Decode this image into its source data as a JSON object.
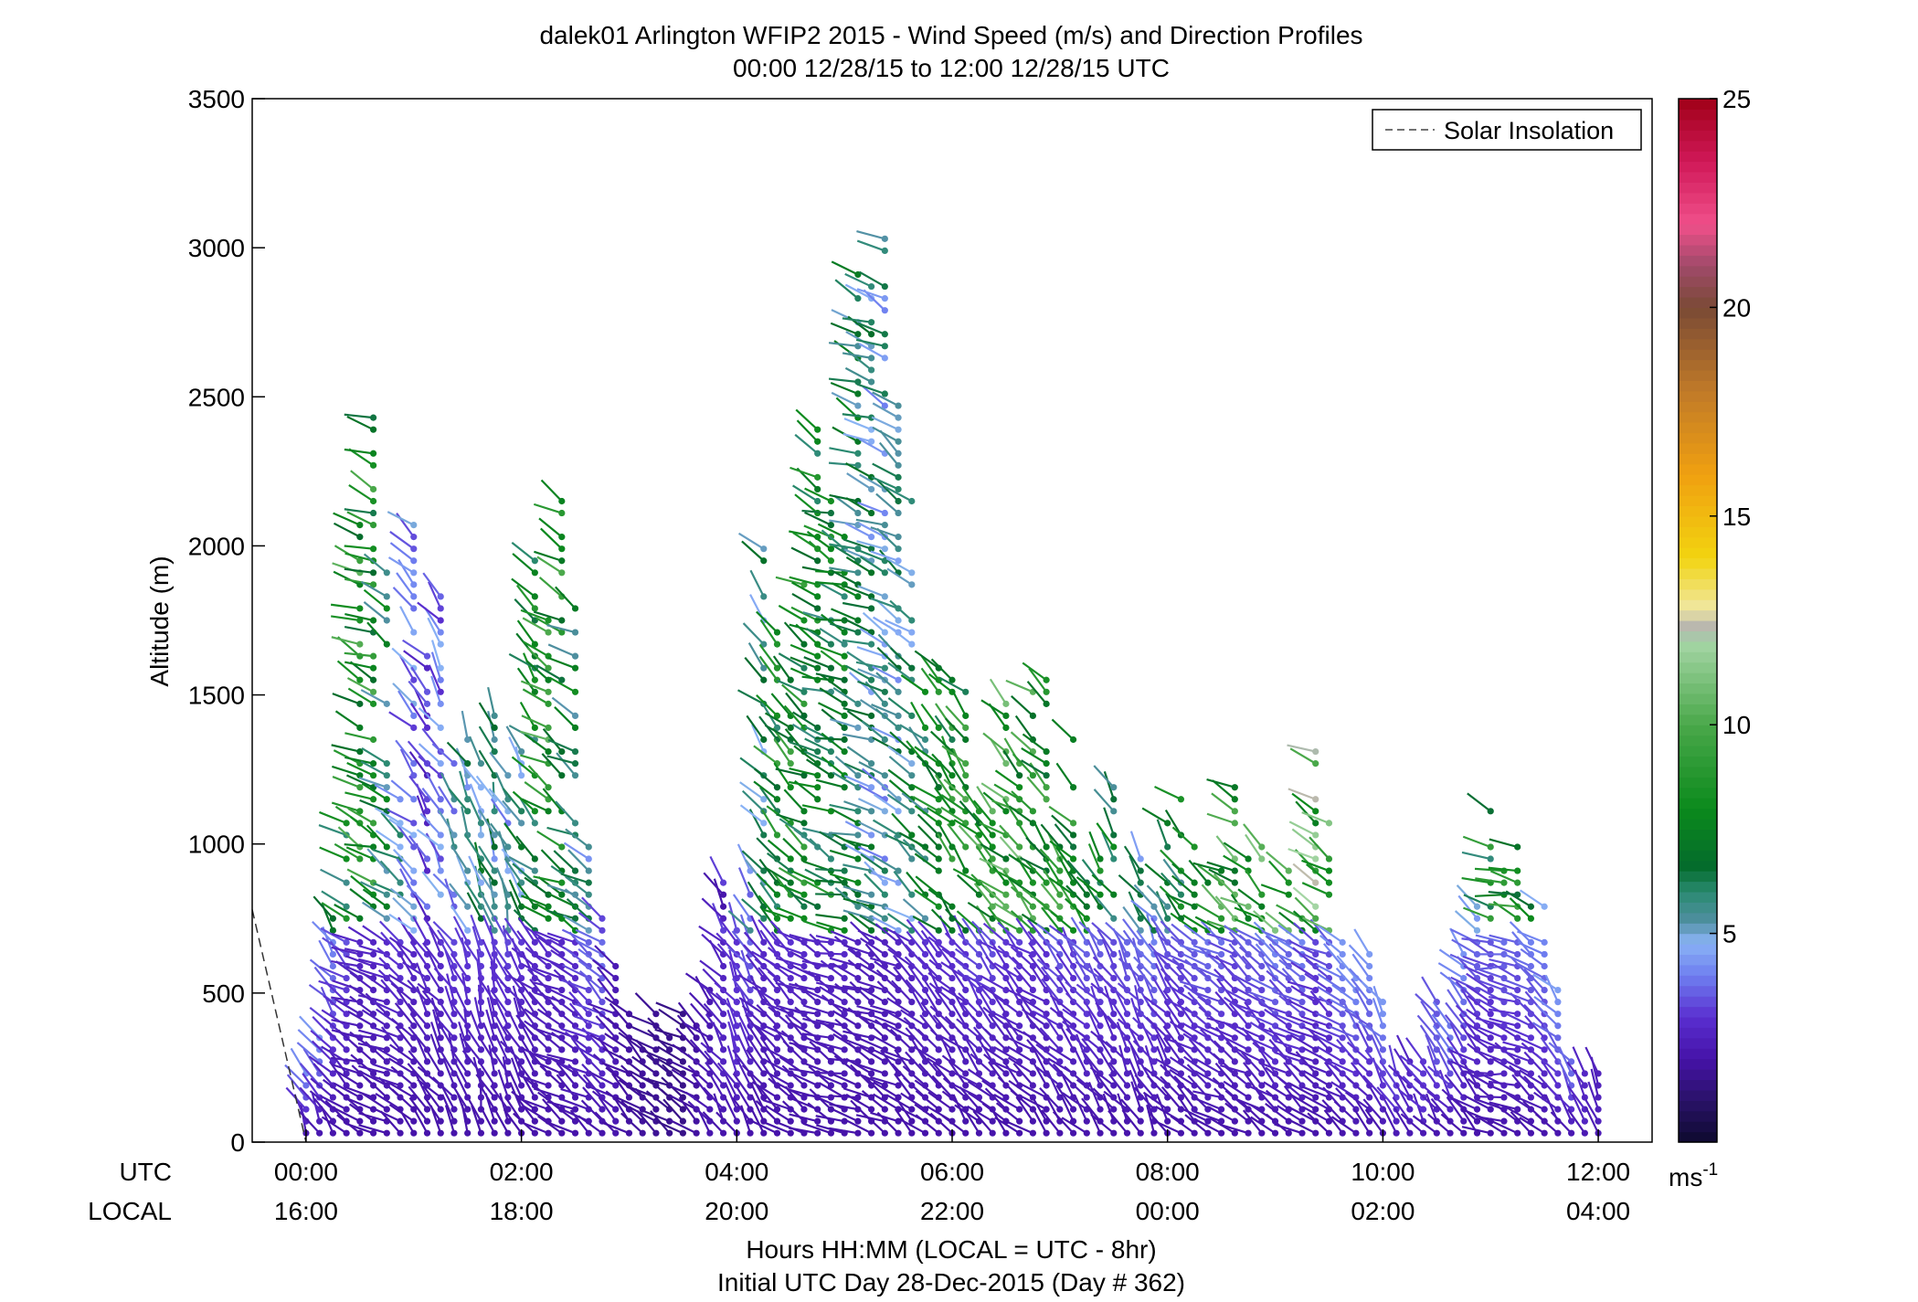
{
  "chart_data": {
    "type": "wind-barb profile",
    "title": "dalek01 Arlington WFIP2 2015 - Wind Speed (m/s) and Direction Profiles",
    "subtitle": "00:00 12/28/15 to 12:00 12/28/15  UTC",
    "ylabel": "Altitude (m)",
    "ylim": [
      0,
      3500
    ],
    "yticks": [
      "0",
      "500",
      "1000",
      "1500",
      "2000",
      "2500",
      "3000",
      "3500"
    ],
    "xlim_hours_utc": [
      -0.5,
      12.5
    ],
    "utc_row_label": "UTC",
    "local_row_label": "LOCAL",
    "utc_ticks": [
      "00:00",
      "02:00",
      "04:00",
      "06:00",
      "08:00",
      "10:00",
      "12:00"
    ],
    "local_ticks": [
      "16:00",
      "18:00",
      "20:00",
      "22:00",
      "00:00",
      "02:00",
      "04:00"
    ],
    "xlabel_line1": "Hours HH:MM  (LOCAL = UTC - 8hr)",
    "xlabel_line2": "Initial UTC Day 28-Dec-2015 (Day # 362)",
    "legend_label": "Solar Insolation",
    "legend_position": "top-right",
    "colorbar": {
      "min": 0,
      "max": 25,
      "ticks": [
        "5",
        "10",
        "15",
        "20",
        "25"
      ],
      "unit_label": "ms",
      "unit_sup": "-1",
      "stops": [
        {
          "v": 0,
          "c": "#0d0a2e"
        },
        {
          "v": 1,
          "c": "#2a1268"
        },
        {
          "v": 2,
          "c": "#4512a8"
        },
        {
          "v": 3,
          "c": "#5a2fd0"
        },
        {
          "v": 4,
          "c": "#6f7ff0"
        },
        {
          "v": 4.8,
          "c": "#8ab4f5"
        },
        {
          "v": 5.3,
          "c": "#4f8fa0"
        },
        {
          "v": 6,
          "c": "#2a8a70"
        },
        {
          "v": 6.6,
          "c": "#046b2c"
        },
        {
          "v": 8,
          "c": "#0b8a1c"
        },
        {
          "v": 10,
          "c": "#4aa84a"
        },
        {
          "v": 12,
          "c": "#a6d6a6"
        },
        {
          "v": 12.3,
          "c": "#b0b0b0"
        },
        {
          "v": 12.8,
          "c": "#f0e7a0"
        },
        {
          "v": 14,
          "c": "#f2d410"
        },
        {
          "v": 16,
          "c": "#f0a010"
        },
        {
          "v": 18,
          "c": "#c07a28"
        },
        {
          "v": 20,
          "c": "#7a4a35"
        },
        {
          "v": 21,
          "c": "#a04a6a"
        },
        {
          "v": 22,
          "c": "#f0508a"
        },
        {
          "v": 23.5,
          "c": "#d01858"
        },
        {
          "v": 25,
          "c": "#a00018"
        }
      ]
    },
    "solar_insolation_line": {
      "x_hours": [
        -0.5,
        0.0
      ],
      "y_m": [
        780,
        0
      ]
    },
    "wind_columns": [
      {
        "t": 0.15,
        "top": 400,
        "speed": 4.5,
        "dir": 210
      },
      {
        "t": 0.55,
        "top": 2540,
        "speed": 9,
        "dir": 250
      },
      {
        "t": 1.1,
        "top": 2130,
        "speed": 3,
        "dir": 220
      },
      {
        "t": 1.6,
        "top": 1880,
        "speed": 6,
        "dir": 200
      },
      {
        "t": 1.9,
        "top": 1950,
        "speed": 5,
        "dir": 200
      },
      {
        "t": 2.3,
        "top": 2740,
        "speed": 9,
        "dir": 240
      },
      {
        "t": 2.9,
        "top": 530,
        "speed": 2,
        "dir": 230
      },
      {
        "t": 3.5,
        "top": 540,
        "speed": 1.5,
        "dir": 240
      },
      {
        "t": 4.0,
        "top": 1200,
        "speed": 3,
        "dir": 210
      },
      {
        "t": 4.4,
        "top": 2600,
        "speed": 8,
        "dir": 230
      },
      {
        "t": 5.0,
        "top": 3020,
        "speed": 7,
        "dir": 250
      },
      {
        "t": 5.4,
        "top": 3270,
        "speed": 5,
        "dir": 240
      },
      {
        "t": 6.0,
        "top": 1830,
        "speed": 8,
        "dir": 220
      },
      {
        "t": 6.6,
        "top": 1780,
        "speed": 9,
        "dir": 230
      },
      {
        "t": 7.2,
        "top": 1570,
        "speed": 8,
        "dir": 220
      },
      {
        "t": 7.8,
        "top": 1060,
        "speed": 5,
        "dir": 210
      },
      {
        "t": 8.4,
        "top": 1420,
        "speed": 9,
        "dir": 240
      },
      {
        "t": 9.0,
        "top": 1370,
        "speed": 9,
        "dir": 230
      },
      {
        "t": 9.4,
        "top": 1320,
        "speed": 10,
        "dir": 240
      },
      {
        "t": 10.2,
        "top": 320,
        "speed": 2.5,
        "dir": 210
      },
      {
        "t": 10.8,
        "top": 840,
        "speed": 4.5,
        "dir": 220
      },
      {
        "t": 11.1,
        "top": 1330,
        "speed": 9,
        "dir": 260
      },
      {
        "t": 11.9,
        "top": 290,
        "speed": 2.5,
        "dir": 200
      }
    ]
  }
}
